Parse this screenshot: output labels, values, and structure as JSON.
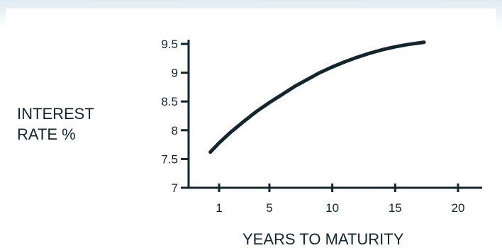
{
  "chart_data": {
    "type": "line",
    "title": "",
    "ylabel_lines": [
      "INTEREST",
      "RATE %"
    ],
    "xlabel": "YEARS TO MATURITY",
    "xlim": [
      -1,
      21
    ],
    "ylim": [
      7,
      9.6
    ],
    "xticks": [
      1,
      5,
      10,
      15,
      20
    ],
    "xtick_labels": [
      "1",
      "5",
      "10",
      "15",
      "20"
    ],
    "yticks": [
      7,
      7.5,
      8,
      8.5,
      9,
      9.5
    ],
    "ytick_labels": [
      "7",
      "7.5",
      "8",
      "8.5",
      "9",
      "9.5"
    ],
    "grid": false,
    "legend": "none",
    "colors": {
      "line": "#14262d",
      "axis": "#14262d",
      "text": "#14262d"
    },
    "series": [
      {
        "x": [
          0.3,
          1,
          2,
          3,
          4,
          5,
          6,
          7,
          8,
          9,
          10,
          11,
          12,
          13,
          14,
          15,
          16,
          17.3
        ],
        "values": [
          7.62,
          7.78,
          7.98,
          8.16,
          8.33,
          8.48,
          8.62,
          8.76,
          8.88,
          9.0,
          9.1,
          9.19,
          9.27,
          9.34,
          9.4,
          9.45,
          9.49,
          9.53
        ]
      }
    ]
  }
}
